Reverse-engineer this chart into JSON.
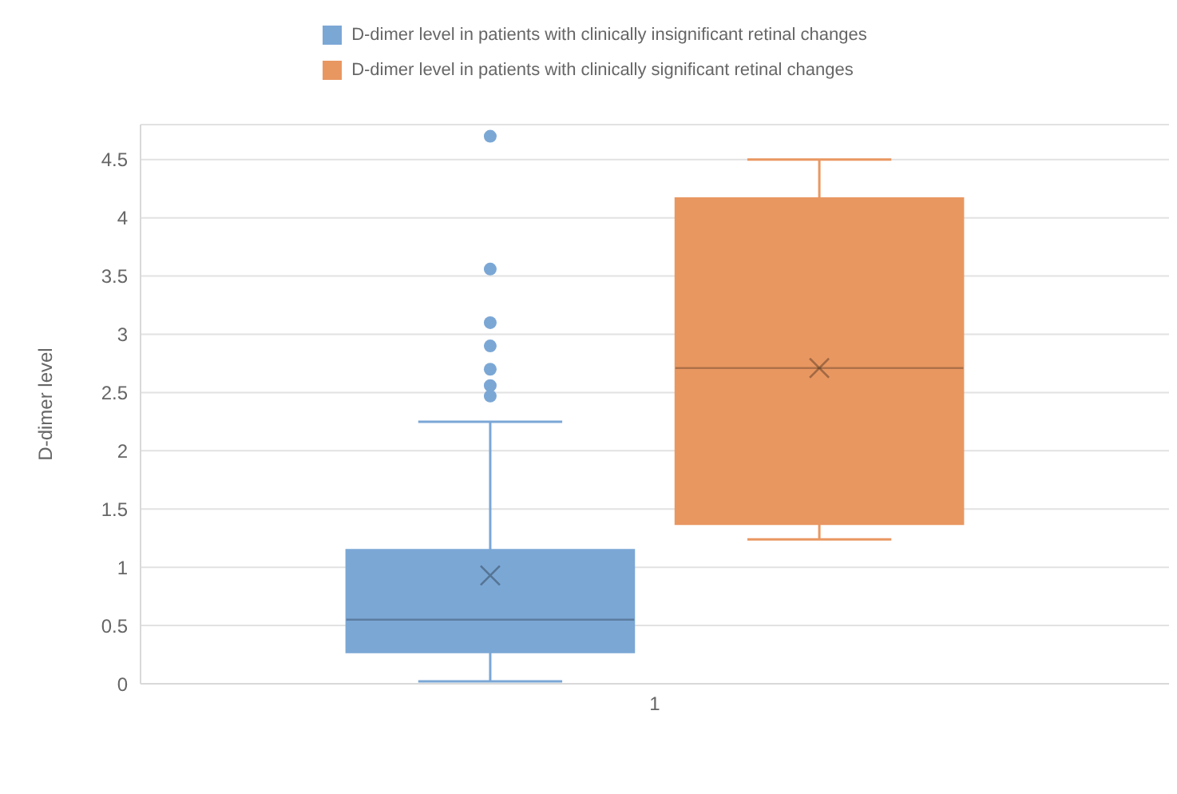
{
  "chart_data": {
    "type": "box",
    "ylabel": "D-dimer level",
    "categories": [
      "1"
    ],
    "ylim": [
      0,
      4.8
    ],
    "yticks": [
      0,
      0.5,
      1,
      1.5,
      2,
      2.5,
      3,
      3.5,
      4,
      4.5
    ],
    "grid": "y",
    "legend": "top",
    "series": [
      {
        "name": "D-dimer level in patients with clinically insignificant retinal changes",
        "color": "#7ba7d5",
        "boxes": [
          {
            "low": 0.02,
            "q1": 0.27,
            "median": 0.55,
            "q3": 1.15,
            "high": 2.25,
            "mean": 0.93,
            "outliers": [
              4.7,
              3.56,
              3.1,
              2.9,
              2.7,
              2.56,
              2.47
            ]
          }
        ]
      },
      {
        "name": "D-dimer level in patients with clinically significant retinal changes",
        "color": "#e99761",
        "boxes": [
          {
            "low": 1.24,
            "q1": 1.37,
            "median": 2.71,
            "q3": 4.17,
            "high": 4.5,
            "mean": 2.71
          }
        ]
      }
    ]
  }
}
